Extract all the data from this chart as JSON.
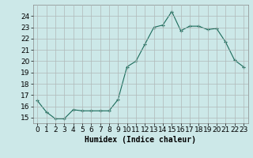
{
  "x": [
    0,
    1,
    2,
    3,
    4,
    5,
    6,
    7,
    8,
    9,
    10,
    11,
    12,
    13,
    14,
    15,
    16,
    17,
    18,
    19,
    20,
    21,
    22,
    23
  ],
  "y": [
    16.5,
    15.5,
    14.9,
    14.9,
    15.7,
    15.6,
    15.6,
    15.6,
    15.6,
    16.6,
    19.5,
    20.0,
    21.5,
    23.0,
    23.2,
    24.4,
    22.7,
    23.1,
    23.1,
    22.8,
    22.9,
    21.7,
    20.1,
    19.5
  ],
  "xlabel": "Humidex (Indice chaleur)",
  "ylim": [
    14.5,
    25.0
  ],
  "xlim": [
    -0.5,
    23.5
  ],
  "yticks": [
    15,
    16,
    17,
    18,
    19,
    20,
    21,
    22,
    23,
    24
  ],
  "xticks": [
    0,
    1,
    2,
    3,
    4,
    5,
    6,
    7,
    8,
    9,
    10,
    11,
    12,
    13,
    14,
    15,
    16,
    17,
    18,
    19,
    20,
    21,
    22,
    23
  ],
  "line_color": "#1a6b5a",
  "marker_color": "#1a6b5a",
  "bg_color": "#cce8e8",
  "grid_color": "#b0b8b8",
  "font_size_axis": 6.5,
  "font_size_label": 7.0
}
